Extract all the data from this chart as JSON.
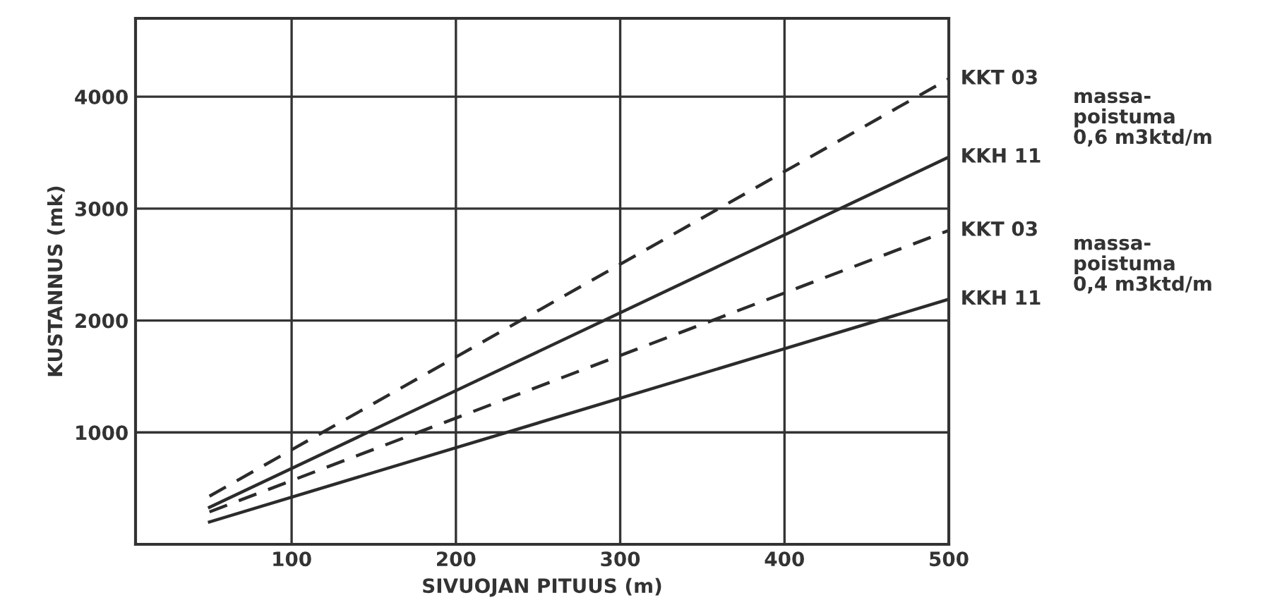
{
  "chart_data": {
    "type": "line",
    "xlabel": "SIVUOJAN PITUUS (m)",
    "ylabel": "KUSTANNUS (mk)",
    "x": [
      50,
      500
    ],
    "series": [
      {
        "name": "KKT 03",
        "color": "#2b2b2b",
        "line_style": "dashed",
        "values": [
          430,
          4160
        ]
      },
      {
        "name": "KKH 11",
        "color": "#2b2b2b",
        "line_style": "solid",
        "values": [
          330,
          3460
        ]
      },
      {
        "name": "KKT 03",
        "color": "#2b2b2b",
        "line_style": "dashed",
        "values": [
          290,
          2805
        ]
      },
      {
        "name": "KKH 11",
        "color": "#2b2b2b",
        "line_style": "solid",
        "values": [
          200,
          2190
        ]
      }
    ],
    "annotations": [
      "massa-\npoistuma\n0,6 m3ktd/m",
      "massa-\npoistuma\n0,4 m3ktd/m"
    ],
    "xlim": [
      5,
      500
    ],
    "ylim": [
      0,
      4700
    ],
    "xticks": [
      100,
      200,
      300,
      400,
      500
    ],
    "yticks": [
      1000,
      2000,
      3000,
      4000
    ],
    "grid": true,
    "marker": "none"
  }
}
